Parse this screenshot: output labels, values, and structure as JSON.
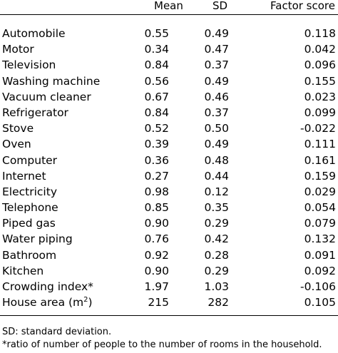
{
  "table": {
    "headers": {
      "mean": "Mean",
      "sd": "SD",
      "factor_score": "Factor score"
    },
    "rows": [
      {
        "label": "Automobile",
        "mean": "0.55",
        "sd": "0.49",
        "factor_score": "0.118"
      },
      {
        "label": "Motor",
        "mean": "0.34",
        "sd": "0.47",
        "factor_score": "0.042"
      },
      {
        "label": "Television",
        "mean": "0.84",
        "sd": "0.37",
        "factor_score": "0.096"
      },
      {
        "label": "Washing machine",
        "mean": "0.56",
        "sd": "0.49",
        "factor_score": "0.155"
      },
      {
        "label": "Vacuum cleaner",
        "mean": "0.67",
        "sd": "0.46",
        "factor_score": "0.023"
      },
      {
        "label": "Refrigerator",
        "mean": "0.84",
        "sd": "0.37",
        "factor_score": "0.099"
      },
      {
        "label": "Stove",
        "mean": "0.52",
        "sd": "0.50",
        "factor_score": "-0.022"
      },
      {
        "label": "Oven",
        "mean": "0.39",
        "sd": "0.49",
        "factor_score": "0.111"
      },
      {
        "label": "Computer",
        "mean": "0.36",
        "sd": "0.48",
        "factor_score": "0.161"
      },
      {
        "label": "Internet",
        "mean": "0.27",
        "sd": "0.44",
        "factor_score": "0.159"
      },
      {
        "label": "Electricity",
        "mean": "0.98",
        "sd": "0.12",
        "factor_score": "0.029"
      },
      {
        "label": "Telephone",
        "mean": "0.85",
        "sd": "0.35",
        "factor_score": "0.054"
      },
      {
        "label": "Piped gas",
        "mean": "0.90",
        "sd": "0.29",
        "factor_score": "0.079"
      },
      {
        "label": "Water piping",
        "mean": "0.76",
        "sd": "0.42",
        "factor_score": "0.132"
      },
      {
        "label": "Bathroom",
        "mean": "0.92",
        "sd": "0.28",
        "factor_score": "0.091"
      },
      {
        "label": "Kitchen",
        "mean": "0.90",
        "sd": "0.29",
        "factor_score": "0.092"
      },
      {
        "label": "Crowding index*",
        "mean": "1.97",
        "sd": "1.03",
        "factor_score": "-0.106"
      },
      {
        "label": "House area (m",
        "label_sup": "2",
        "label_suffix": ")",
        "mean": "215",
        "sd": "282",
        "factor_score": "0.105"
      }
    ]
  },
  "footnotes": {
    "sd_note": "SD: standard deviation.",
    "asterisk_note": "*ratio of number of people to the number of rooms in the household."
  }
}
